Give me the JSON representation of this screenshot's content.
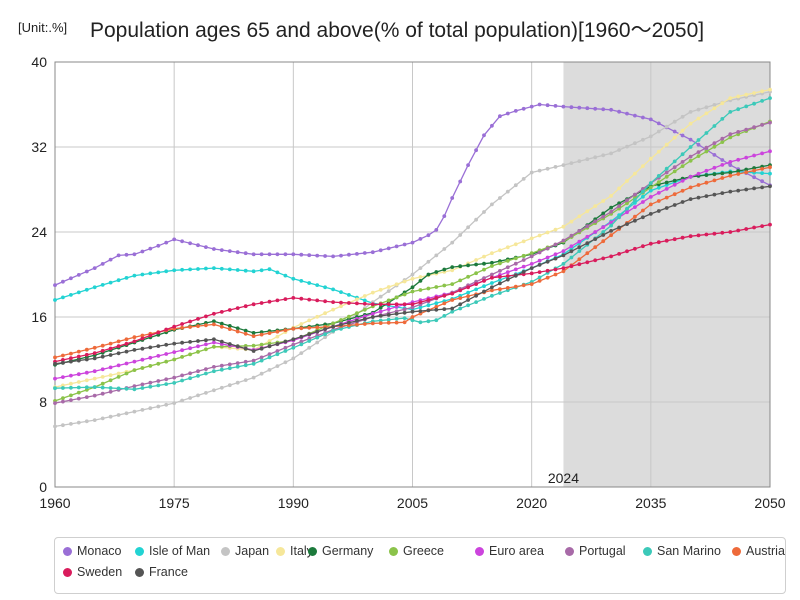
{
  "unit_label": "[Unit:.%]",
  "title": "Population ages 65 and above(% of total population)[1960～2050]",
  "chart_data": {
    "type": "line",
    "title": "Population ages 65 and above(% of total population)[1960～2050]",
    "xlabel": "",
    "ylabel": "%",
    "xlim": [
      1960,
      2050
    ],
    "ylim": [
      0,
      40
    ],
    "x_ticks": [
      1960,
      1975,
      1990,
      2005,
      2020,
      2035,
      2050
    ],
    "y_ticks": [
      0,
      8,
      16,
      24,
      32,
      40
    ],
    "grid": true,
    "forecast_start": 2024,
    "forecast_label": "2024",
    "legend_position": "bottom",
    "series": [
      {
        "name": "Monaco",
        "color": "#9a6fd6",
        "points": [
          [
            1960,
            19.0
          ],
          [
            1965,
            20.6
          ],
          [
            1968,
            21.8
          ],
          [
            1970,
            21.9
          ],
          [
            1973,
            22.7
          ],
          [
            1975,
            23.3
          ],
          [
            1980,
            22.4
          ],
          [
            1985,
            21.9
          ],
          [
            1990,
            21.9
          ],
          [
            1995,
            21.7
          ],
          [
            2000,
            22.1
          ],
          [
            2005,
            23.0
          ],
          [
            2007,
            23.7
          ],
          [
            2008,
            24.2
          ],
          [
            2009,
            25.5
          ],
          [
            2010,
            27.2
          ],
          [
            2012,
            30.3
          ],
          [
            2014,
            33.1
          ],
          [
            2016,
            34.9
          ],
          [
            2018,
            35.4
          ],
          [
            2021,
            36.0
          ],
          [
            2024,
            35.8
          ],
          [
            2030,
            35.5
          ],
          [
            2035,
            34.6
          ],
          [
            2040,
            32.7
          ],
          [
            2045,
            30.3
          ],
          [
            2050,
            28.4
          ]
        ]
      },
      {
        "name": "Isle of Man",
        "color": "#22d3d3",
        "points": [
          [
            1960,
            17.6
          ],
          [
            1965,
            18.8
          ],
          [
            1970,
            19.9
          ],
          [
            1975,
            20.4
          ],
          [
            1980,
            20.6
          ],
          [
            1985,
            20.3
          ],
          [
            1987,
            20.5
          ],
          [
            1990,
            19.6
          ],
          [
            1995,
            18.6
          ],
          [
            2000,
            17.3
          ],
          [
            2005,
            16.7
          ],
          [
            2010,
            17.7
          ],
          [
            2015,
            19.2
          ],
          [
            2020,
            20.6
          ],
          [
            2024,
            21.9
          ],
          [
            2030,
            25.0
          ],
          [
            2035,
            27.9
          ],
          [
            2040,
            29.2
          ],
          [
            2045,
            29.7
          ],
          [
            2050,
            29.5
          ]
        ]
      },
      {
        "name": "Japan",
        "color": "#c4c4c4",
        "points": [
          [
            1960,
            5.7
          ],
          [
            1965,
            6.3
          ],
          [
            1970,
            7.1
          ],
          [
            1975,
            7.9
          ],
          [
            1980,
            9.1
          ],
          [
            1985,
            10.3
          ],
          [
            1990,
            12.1
          ],
          [
            1995,
            14.6
          ],
          [
            2000,
            17.4
          ],
          [
            2005,
            20.0
          ],
          [
            2010,
            23.0
          ],
          [
            2015,
            26.6
          ],
          [
            2020,
            29.6
          ],
          [
            2024,
            30.3
          ],
          [
            2030,
            31.4
          ],
          [
            2035,
            33.0
          ],
          [
            2040,
            35.3
          ],
          [
            2045,
            36.4
          ],
          [
            2050,
            37.2
          ]
        ]
      },
      {
        "name": "Italy",
        "color": "#f6e79a",
        "points": [
          [
            1960,
            9.4
          ],
          [
            1965,
            10.2
          ],
          [
            1970,
            11.0
          ],
          [
            1975,
            12.0
          ],
          [
            1980,
            13.2
          ],
          [
            1985,
            12.9
          ],
          [
            1990,
            15.0
          ],
          [
            1995,
            16.7
          ],
          [
            2000,
            18.3
          ],
          [
            2005,
            19.6
          ],
          [
            2010,
            20.4
          ],
          [
            2015,
            22.0
          ],
          [
            2020,
            23.4
          ],
          [
            2024,
            24.5
          ],
          [
            2030,
            27.4
          ],
          [
            2035,
            30.9
          ],
          [
            2040,
            34.2
          ],
          [
            2045,
            36.6
          ],
          [
            2050,
            37.4
          ]
        ]
      },
      {
        "name": "Germany",
        "color": "#1c7a3c",
        "points": [
          [
            1960,
            11.5
          ],
          [
            1965,
            12.4
          ],
          [
            1970,
            13.6
          ],
          [
            1975,
            14.8
          ],
          [
            1980,
            15.6
          ],
          [
            1985,
            14.5
          ],
          [
            1990,
            14.9
          ],
          [
            1995,
            15.4
          ],
          [
            2000,
            16.4
          ],
          [
            2005,
            18.8
          ],
          [
            2007,
            20.0
          ],
          [
            2010,
            20.7
          ],
          [
            2015,
            21.1
          ],
          [
            2020,
            21.9
          ],
          [
            2024,
            23.0
          ],
          [
            2030,
            26.3
          ],
          [
            2035,
            28.3
          ],
          [
            2040,
            29.2
          ],
          [
            2045,
            29.6
          ],
          [
            2050,
            30.3
          ]
        ]
      },
      {
        "name": "Greece",
        "color": "#8bc34a",
        "points": [
          [
            1960,
            8.1
          ],
          [
            1965,
            9.4
          ],
          [
            1970,
            11.0
          ],
          [
            1975,
            12.0
          ],
          [
            1980,
            13.2
          ],
          [
            1985,
            13.3
          ],
          [
            1990,
            13.8
          ],
          [
            1995,
            15.4
          ],
          [
            2000,
            17.0
          ],
          [
            2005,
            18.4
          ],
          [
            2010,
            19.1
          ],
          [
            2015,
            20.8
          ],
          [
            2020,
            22.0
          ],
          [
            2024,
            23.1
          ],
          [
            2030,
            25.7
          ],
          [
            2035,
            28.2
          ],
          [
            2040,
            30.7
          ],
          [
            2045,
            32.9
          ],
          [
            2050,
            34.4
          ]
        ]
      },
      {
        "name": "Euro area",
        "color": "#cc44dd",
        "points": [
          [
            1960,
            10.2
          ],
          [
            1965,
            10.9
          ],
          [
            1970,
            11.8
          ],
          [
            1975,
            12.7
          ],
          [
            1980,
            13.6
          ],
          [
            1985,
            12.9
          ],
          [
            1990,
            13.8
          ],
          [
            1995,
            15.1
          ],
          [
            2000,
            16.3
          ],
          [
            2005,
            17.4
          ],
          [
            2010,
            18.3
          ],
          [
            2015,
            19.7
          ],
          [
            2020,
            21.0
          ],
          [
            2024,
            22.2
          ],
          [
            2030,
            24.9
          ],
          [
            2035,
            27.3
          ],
          [
            2040,
            29.2
          ],
          [
            2045,
            30.6
          ],
          [
            2050,
            31.6
          ]
        ]
      },
      {
        "name": "Portugal",
        "color": "#a86aa8",
        "points": [
          [
            1960,
            7.9
          ],
          [
            1965,
            8.6
          ],
          [
            1970,
            9.5
          ],
          [
            1975,
            10.3
          ],
          [
            1980,
            11.3
          ],
          [
            1985,
            11.9
          ],
          [
            1990,
            13.4
          ],
          [
            1995,
            14.8
          ],
          [
            2000,
            16.0
          ],
          [
            2005,
            16.9
          ],
          [
            2010,
            18.3
          ],
          [
            2015,
            20.0
          ],
          [
            2020,
            21.7
          ],
          [
            2024,
            23.2
          ],
          [
            2030,
            25.9
          ],
          [
            2035,
            28.6
          ],
          [
            2040,
            31.1
          ],
          [
            2045,
            33.2
          ],
          [
            2050,
            34.3
          ]
        ]
      },
      {
        "name": "San Marino",
        "color": "#3cc9b9",
        "points": [
          [
            1960,
            9.3
          ],
          [
            1965,
            9.4
          ],
          [
            1970,
            9.2
          ],
          [
            1975,
            9.8
          ],
          [
            1980,
            10.9
          ],
          [
            1985,
            11.6
          ],
          [
            1990,
            13.1
          ],
          [
            1995,
            14.7
          ],
          [
            2000,
            15.6
          ],
          [
            2004,
            15.9
          ],
          [
            2006,
            15.5
          ],
          [
            2008,
            15.7
          ],
          [
            2010,
            16.5
          ],
          [
            2015,
            18.0
          ],
          [
            2020,
            19.3
          ],
          [
            2024,
            21.0
          ],
          [
            2030,
            24.6
          ],
          [
            2035,
            28.6
          ],
          [
            2040,
            32.0
          ],
          [
            2045,
            35.3
          ],
          [
            2050,
            36.6
          ]
        ]
      },
      {
        "name": "Austria",
        "color": "#ee6a3a",
        "points": [
          [
            1960,
            12.2
          ],
          [
            1965,
            13.1
          ],
          [
            1970,
            14.1
          ],
          [
            1975,
            14.9
          ],
          [
            1980,
            15.3
          ],
          [
            1985,
            14.2
          ],
          [
            1990,
            14.9
          ],
          [
            1995,
            15.1
          ],
          [
            2000,
            15.4
          ],
          [
            2004,
            15.5
          ],
          [
            2005,
            16.0
          ],
          [
            2010,
            17.6
          ],
          [
            2015,
            18.5
          ],
          [
            2020,
            19.1
          ],
          [
            2024,
            20.3
          ],
          [
            2030,
            23.7
          ],
          [
            2035,
            26.6
          ],
          [
            2040,
            28.2
          ],
          [
            2045,
            29.3
          ],
          [
            2050,
            30.1
          ]
        ]
      },
      {
        "name": "Sweden",
        "color": "#d91c5c",
        "points": [
          [
            1960,
            11.8
          ],
          [
            1965,
            12.6
          ],
          [
            1970,
            13.7
          ],
          [
            1975,
            15.1
          ],
          [
            1980,
            16.3
          ],
          [
            1985,
            17.2
          ],
          [
            1990,
            17.8
          ],
          [
            1995,
            17.4
          ],
          [
            2000,
            17.2
          ],
          [
            2005,
            17.2
          ],
          [
            2010,
            18.2
          ],
          [
            2015,
            19.7
          ],
          [
            2020,
            20.1
          ],
          [
            2024,
            20.6
          ],
          [
            2030,
            21.7
          ],
          [
            2035,
            22.9
          ],
          [
            2040,
            23.6
          ],
          [
            2045,
            24.0
          ],
          [
            2050,
            24.7
          ]
        ]
      },
      {
        "name": "France",
        "color": "#555555",
        "points": [
          [
            1960,
            11.6
          ],
          [
            1965,
            12.1
          ],
          [
            1970,
            12.9
          ],
          [
            1975,
            13.5
          ],
          [
            1980,
            13.9
          ],
          [
            1985,
            12.8
          ],
          [
            1990,
            13.9
          ],
          [
            1995,
            15.1
          ],
          [
            2000,
            16.0
          ],
          [
            2005,
            16.5
          ],
          [
            2010,
            16.8
          ],
          [
            2015,
            18.8
          ],
          [
            2020,
            20.6
          ],
          [
            2024,
            21.8
          ],
          [
            2030,
            24.1
          ],
          [
            2035,
            25.7
          ],
          [
            2040,
            27.1
          ],
          [
            2045,
            27.8
          ],
          [
            2050,
            28.3
          ]
        ]
      }
    ]
  }
}
